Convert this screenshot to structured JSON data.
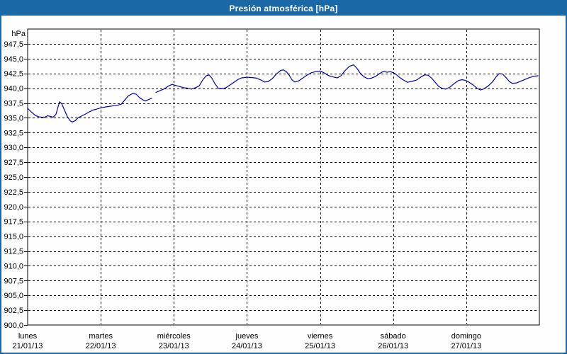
{
  "window": {
    "title": "Presión atmosférica [hPa]"
  },
  "colors": {
    "titlebar_bg": "#1A69A6",
    "titlebar_text": "#FFFFFF",
    "window_border": "#1A69A6",
    "background": "#FDFEFD",
    "grid": "#000000",
    "axis": "#000000",
    "text": "#000000",
    "line": "#0000BB"
  },
  "chart_data": {
    "type": "line",
    "title": "Presión atmosférica [hPa]",
    "unit_label": "hPa",
    "grid": "dashed",
    "legend": "none",
    "y_axis": {
      "min": 900,
      "max": 950,
      "tick_step": 2.5,
      "tick_values": [
        947.5,
        945.0,
        942.5,
        940.0,
        937.5,
        935.0,
        932.5,
        930.0,
        927.5,
        925.0,
        922.5,
        920.0,
        917.5,
        915.0,
        912.5,
        910.0,
        907.5,
        905.0,
        902.5,
        900.0
      ],
      "tick_labels": [
        "947,5",
        "945,0",
        "942,5",
        "940,0",
        "937,5",
        "935,0",
        "932,5",
        "930,0",
        "927,5",
        "925,0",
        "922,5",
        "920,0",
        "917,5",
        "915,0",
        "912,5",
        "910,0",
        "907,5",
        "905,0",
        "902,5",
        "900,0"
      ]
    },
    "x_axis": {
      "span_days": 7,
      "gridline_days": [
        1,
        2,
        3,
        4,
        5,
        6
      ],
      "days": [
        {
          "name": "lunes",
          "date": "21/01/13"
        },
        {
          "name": "martes",
          "date": "22/01/13"
        },
        {
          "name": "miércoles",
          "date": "23/01/13"
        },
        {
          "name": "jueves",
          "date": "24/01/13"
        },
        {
          "name": "viernes",
          "date": "25/01/13"
        },
        {
          "name": "sábado",
          "date": "26/01/13"
        },
        {
          "name": "domingo",
          "date": "27/01/13"
        }
      ]
    },
    "series": [
      {
        "name": "Presión atmosférica",
        "color": "#0000BB",
        "unit": "hPa",
        "segments": [
          [
            [
              0.0,
              936.6
            ],
            [
              0.048,
              936.0
            ],
            [
              0.107,
              935.4
            ],
            [
              0.155,
              935.15
            ],
            [
              0.223,
              935.05
            ],
            [
              0.272,
              935.35
            ],
            [
              0.31,
              935.25
            ],
            [
              0.349,
              935.1
            ],
            [
              0.388,
              935.6
            ],
            [
              0.417,
              936.9
            ],
            [
              0.436,
              937.7
            ],
            [
              0.465,
              937.4
            ],
            [
              0.504,
              936.3
            ],
            [
              0.543,
              935.2
            ],
            [
              0.582,
              934.5
            ],
            [
              0.611,
              934.3
            ],
            [
              0.65,
              934.5
            ],
            [
              0.688,
              935.0
            ],
            [
              0.737,
              935.3
            ],
            [
              0.785,
              935.6
            ],
            [
              0.844,
              936.0
            ],
            [
              0.892,
              936.3
            ],
            [
              0.95,
              936.5
            ],
            [
              1.008,
              936.7
            ],
            [
              1.076,
              936.85
            ],
            [
              1.154,
              937.0
            ],
            [
              1.222,
              937.1
            ],
            [
              1.28,
              937.3
            ],
            [
              1.328,
              938.0
            ],
            [
              1.377,
              938.7
            ],
            [
              1.435,
              939.1
            ],
            [
              1.483,
              939.0
            ],
            [
              1.532,
              938.4
            ],
            [
              1.58,
              938.0
            ],
            [
              1.61,
              937.85
            ],
            [
              1.658,
              938.1
            ],
            [
              1.697,
              938.3
            ]
          ],
          [
            [
              1.755,
              939.3
            ],
            [
              1.813,
              939.6
            ],
            [
              1.871,
              939.9
            ],
            [
              1.93,
              940.4
            ],
            [
              1.978,
              940.65
            ],
            [
              2.017,
              940.5
            ],
            [
              2.075,
              940.3
            ],
            [
              2.133,
              940.1
            ],
            [
              2.191,
              940.0
            ],
            [
              2.24,
              939.85
            ],
            [
              2.298,
              940.1
            ],
            [
              2.346,
              940.4
            ],
            [
              2.395,
              941.4
            ],
            [
              2.443,
              942.1
            ],
            [
              2.482,
              942.25
            ],
            [
              2.521,
              941.7
            ],
            [
              2.56,
              940.8
            ],
            [
              2.608,
              940.0
            ],
            [
              2.666,
              939.9
            ],
            [
              2.715,
              940.1
            ],
            [
              2.763,
              940.5
            ],
            [
              2.821,
              941.0
            ],
            [
              2.88,
              941.5
            ],
            [
              2.928,
              941.75
            ],
            [
              2.996,
              941.85
            ],
            [
              3.074,
              941.8
            ],
            [
              3.132,
              941.7
            ],
            [
              3.19,
              941.4
            ],
            [
              3.238,
              941.05
            ],
            [
              3.287,
              941.1
            ],
            [
              3.345,
              941.6
            ],
            [
              3.403,
              942.4
            ],
            [
              3.461,
              943.0
            ],
            [
              3.5,
              943.1
            ],
            [
              3.539,
              942.8
            ],
            [
              3.578,
              942.2
            ],
            [
              3.617,
              941.4
            ],
            [
              3.655,
              941.05
            ],
            [
              3.704,
              941.2
            ],
            [
              3.762,
              941.7
            ],
            [
              3.82,
              942.2
            ],
            [
              3.878,
              942.6
            ],
            [
              3.936,
              942.8
            ],
            [
              4.004,
              942.9
            ],
            [
              4.062,
              942.55
            ],
            [
              4.121,
              942.1
            ],
            [
              4.179,
              941.9
            ],
            [
              4.237,
              941.75
            ],
            [
              4.285,
              942.1
            ],
            [
              4.344,
              943.0
            ],
            [
              4.402,
              943.7
            ],
            [
              4.46,
              943.95
            ],
            [
              4.508,
              943.3
            ],
            [
              4.557,
              942.4
            ],
            [
              4.605,
              941.9
            ],
            [
              4.654,
              941.6
            ],
            [
              4.702,
              941.7
            ],
            [
              4.76,
              942.0
            ],
            [
              4.818,
              942.5
            ],
            [
              4.867,
              942.85
            ],
            [
              4.915,
              942.7
            ],
            [
              4.964,
              942.8
            ],
            [
              5.022,
              942.5
            ],
            [
              5.08,
              941.9
            ],
            [
              5.138,
              941.4
            ],
            [
              5.196,
              941.0
            ],
            [
              5.255,
              941.15
            ],
            [
              5.323,
              941.4
            ],
            [
              5.381,
              941.9
            ],
            [
              5.429,
              942.25
            ],
            [
              5.478,
              942.2
            ],
            [
              5.526,
              941.7
            ],
            [
              5.575,
              941.0
            ],
            [
              5.623,
              940.3
            ],
            [
              5.672,
              939.95
            ],
            [
              5.72,
              939.85
            ],
            [
              5.778,
              940.2
            ],
            [
              5.836,
              940.8
            ],
            [
              5.895,
              941.3
            ],
            [
              5.943,
              941.45
            ],
            [
              5.992,
              941.3
            ],
            [
              6.04,
              941.0
            ],
            [
              6.098,
              940.5
            ],
            [
              6.147,
              940.0
            ],
            [
              6.195,
              939.7
            ],
            [
              6.244,
              939.9
            ],
            [
              6.302,
              940.4
            ],
            [
              6.36,
              941.1
            ],
            [
              6.408,
              941.9
            ],
            [
              6.447,
              942.45
            ],
            [
              6.496,
              942.4
            ],
            [
              6.544,
              941.8
            ],
            [
              6.593,
              941.1
            ],
            [
              6.631,
              940.8
            ],
            [
              6.69,
              940.9
            ],
            [
              6.748,
              941.2
            ],
            [
              6.806,
              941.5
            ],
            [
              6.864,
              941.8
            ],
            [
              6.922,
              942.0
            ],
            [
              6.981,
              942.1
            ]
          ]
        ]
      }
    ]
  }
}
